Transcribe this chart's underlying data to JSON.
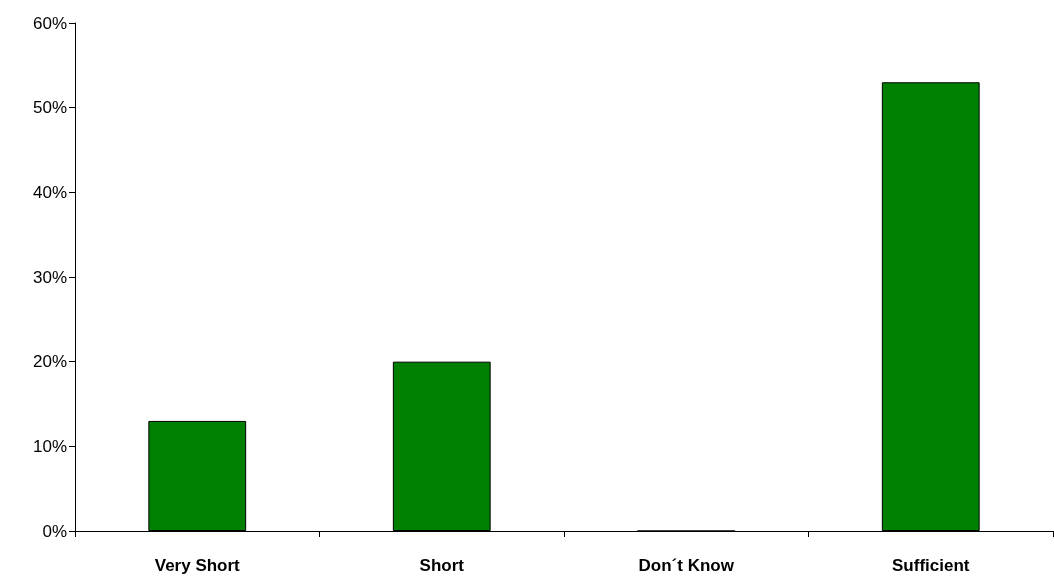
{
  "chart_data": {
    "type": "bar",
    "categories": [
      "Very Short",
      "Short",
      "Don´t Know",
      "Sufficient"
    ],
    "values": [
      13,
      20,
      0,
      53
    ],
    "color": "#008000",
    "ylim": [
      0,
      60
    ],
    "yticks": [
      {
        "value": 0,
        "label": "0%"
      },
      {
        "value": 10,
        "label": "10%"
      },
      {
        "value": 20,
        "label": "20%"
      },
      {
        "value": 30,
        "label": "30%"
      },
      {
        "value": 40,
        "label": "40%"
      },
      {
        "value": 50,
        "label": "50%"
      },
      {
        "value": 60,
        "label": "60%"
      }
    ],
    "grid": false
  }
}
